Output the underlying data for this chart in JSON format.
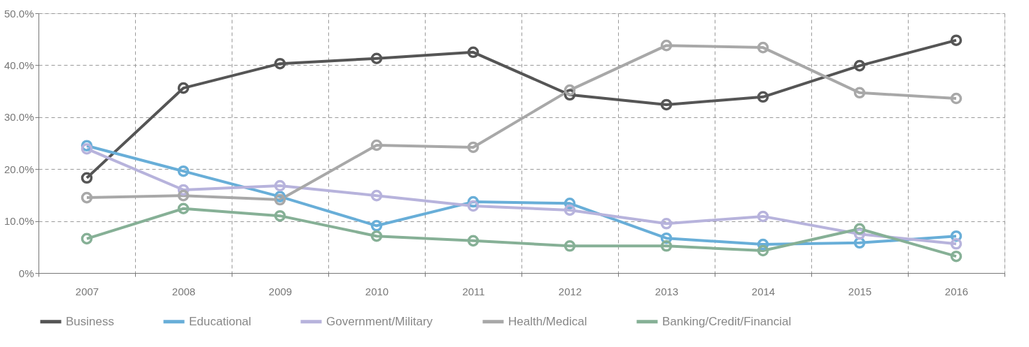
{
  "chart_data": {
    "type": "line",
    "categories": [
      "2007",
      "2008",
      "2009",
      "2010",
      "2011",
      "2012",
      "2013",
      "2014",
      "2015",
      "2016"
    ],
    "series": [
      {
        "name": "Business",
        "color": "#555555",
        "values": [
          18.3,
          35.6,
          40.3,
          41.3,
          42.5,
          34.3,
          32.4,
          33.9,
          39.9,
          44.8
        ]
      },
      {
        "name": "Educational",
        "color": "#68aed8",
        "values": [
          24.5,
          19.6,
          14.7,
          9.1,
          13.7,
          13.4,
          6.7,
          5.5,
          5.8,
          7.1
        ]
      },
      {
        "name": "Government/Military",
        "color": "#b7b3dc",
        "values": [
          23.9,
          16.0,
          16.8,
          14.9,
          12.9,
          12.1,
          9.5,
          10.9,
          7.5,
          5.6
        ]
      },
      {
        "name": "Health/Medical",
        "color": "#a8a8a8",
        "values": [
          14.5,
          14.9,
          14.1,
          24.6,
          24.2,
          35.2,
          43.8,
          43.4,
          34.7,
          33.6
        ]
      },
      {
        "name": "Banking/Credit/Financial",
        "color": "#86b096",
        "values": [
          6.6,
          12.4,
          11.0,
          7.1,
          6.2,
          5.2,
          5.2,
          4.3,
          8.5,
          3.2
        ]
      }
    ],
    "ylim": [
      0,
      50
    ],
    "yticks": [
      {
        "value": 0,
        "label": "0%"
      },
      {
        "value": 10,
        "label": "10.0%"
      },
      {
        "value": 20,
        "label": "20.0%"
      },
      {
        "value": 30,
        "label": "30.0%"
      },
      {
        "value": 40,
        "label": "40.0%"
      },
      {
        "value": 50,
        "label": "50.0%"
      }
    ],
    "grid": true,
    "legend": "bottom",
    "marker": "circle",
    "line_style": "solid"
  }
}
